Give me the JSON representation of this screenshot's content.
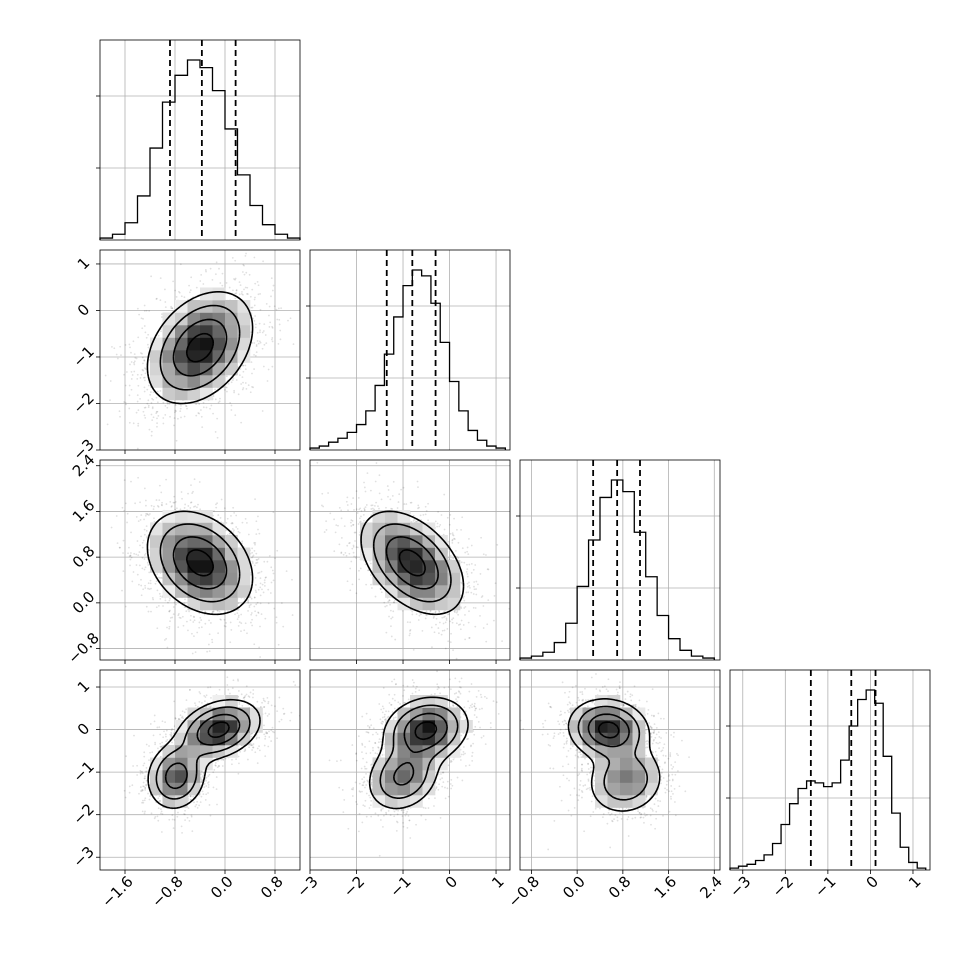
{
  "chart_data": {
    "type": "corner",
    "n_params": 4,
    "grid": true,
    "params": [
      {
        "range": [
          -2.0,
          1.2
        ],
        "ticks": [
          -1.6,
          -0.8,
          0.0,
          0.8
        ],
        "tick_labels": [
          "−1.6",
          "−0.8",
          "0.0",
          "0.8"
        ],
        "quantiles": [
          -0.88,
          -0.37,
          0.17
        ]
      },
      {
        "range": [
          -3.0,
          1.3
        ],
        "ticks": [
          -3,
          -2,
          -1,
          0,
          1
        ],
        "tick_labels": [
          "−3",
          "−2",
          "−1",
          "0",
          "1"
        ],
        "quantiles": [
          -1.35,
          -0.8,
          -0.3
        ]
      },
      {
        "range": [
          -1.0,
          2.5
        ],
        "ticks": [
          -0.8,
          0.0,
          0.8,
          1.6,
          2.4
        ],
        "tick_labels": [
          "−0.8",
          "0.0",
          "0.8",
          "1.6",
          "2.4"
        ],
        "quantiles": [
          0.28,
          0.7,
          1.1
        ]
      },
      {
        "range": [
          -3.3,
          1.4
        ],
        "ticks": [
          -3,
          -2,
          -1,
          0,
          1
        ],
        "tick_labels": [
          "−3",
          "−2",
          "−1",
          "0",
          "1"
        ],
        "quantiles": [
          -1.4,
          -0.45,
          0.12
        ]
      }
    ],
    "histograms": [
      {
        "bins": [
          -2.0,
          -1.8,
          -1.6,
          -1.4,
          -1.2,
          -1.0,
          -0.8,
          -0.6,
          -0.4,
          -0.2,
          0.0,
          0.2,
          0.4,
          0.6,
          0.8,
          1.0,
          1.2
        ],
        "counts": [
          1,
          3,
          9,
          23,
          48,
          72,
          86,
          94,
          90,
          78,
          58,
          34,
          18,
          8,
          3,
          1
        ]
      },
      {
        "bins": [
          -3.0,
          -2.8,
          -2.6,
          -2.4,
          -2.2,
          -2.0,
          -1.8,
          -1.6,
          -1.4,
          -1.2,
          -1.0,
          -0.8,
          -0.6,
          -0.4,
          -0.2,
          0.0,
          0.2,
          0.4,
          0.6,
          0.8,
          1.0,
          1.2
        ],
        "counts": [
          1,
          2,
          4,
          6,
          9,
          13,
          20,
          33,
          49,
          68,
          84,
          92,
          89,
          75,
          55,
          35,
          20,
          10,
          5,
          2,
          1
        ]
      },
      {
        "bins": [
          -1.0,
          -0.8,
          -0.6,
          -0.4,
          -0.2,
          0.0,
          0.2,
          0.4,
          0.6,
          0.8,
          1.0,
          1.2,
          1.4,
          1.6,
          1.8,
          2.0,
          2.2,
          2.4
        ],
        "counts": [
          1,
          2,
          4,
          9,
          19,
          38,
          62,
          84,
          93,
          87,
          66,
          43,
          23,
          11,
          5,
          2,
          1
        ]
      },
      {
        "bins": [
          -3.3,
          -3.1,
          -2.9,
          -2.7,
          -2.5,
          -2.3,
          -2.1,
          -1.9,
          -1.7,
          -1.5,
          -1.3,
          -1.1,
          -0.9,
          -0.7,
          -0.5,
          -0.3,
          -0.1,
          0.1,
          0.3,
          0.5,
          0.7,
          0.9,
          1.1,
          1.3
        ],
        "counts": [
          1,
          2,
          3,
          5,
          8,
          14,
          24,
          35,
          43,
          47,
          46,
          44,
          46,
          58,
          76,
          90,
          95,
          88,
          60,
          30,
          12,
          4,
          1
        ]
      }
    ],
    "joint": [
      {
        "x": 0,
        "y": 1,
        "components": [
          {
            "w": 1.0,
            "mx": -0.4,
            "my": -0.8,
            "sx": 0.42,
            "sy": 0.6,
            "rho": 0.35
          }
        ]
      },
      {
        "x": 0,
        "y": 2,
        "components": [
          {
            "w": 1.0,
            "mx": -0.4,
            "my": 0.7,
            "sx": 0.42,
            "sy": 0.45,
            "rho": -0.3
          }
        ]
      },
      {
        "x": 1,
        "y": 2,
        "components": [
          {
            "w": 1.0,
            "mx": -0.8,
            "my": 0.7,
            "sx": 0.55,
            "sy": 0.45,
            "rho": -0.45
          }
        ]
      },
      {
        "x": 0,
        "y": 3,
        "components": [
          {
            "w": 0.6,
            "mx": -0.1,
            "my": 0.0,
            "sx": 0.33,
            "sy": 0.35,
            "rho": 0.3
          },
          {
            "w": 0.4,
            "mx": -0.78,
            "my": -1.1,
            "sx": 0.24,
            "sy": 0.4,
            "rho": 0.1
          }
        ]
      },
      {
        "x": 1,
        "y": 3,
        "components": [
          {
            "w": 0.6,
            "mx": -0.5,
            "my": 0.0,
            "sx": 0.45,
            "sy": 0.38,
            "rho": 0.15
          },
          {
            "w": 0.4,
            "mx": -1.0,
            "my": -1.1,
            "sx": 0.4,
            "sy": 0.42,
            "rho": 0.2
          }
        ]
      },
      {
        "x": 2,
        "y": 3,
        "components": [
          {
            "w": 0.6,
            "mx": 0.55,
            "my": 0.0,
            "sx": 0.35,
            "sy": 0.36,
            "rho": -0.1
          },
          {
            "w": 0.4,
            "mx": 0.85,
            "my": -1.2,
            "sx": 0.35,
            "sy": 0.42,
            "rho": 0.1
          }
        ]
      }
    ]
  }
}
